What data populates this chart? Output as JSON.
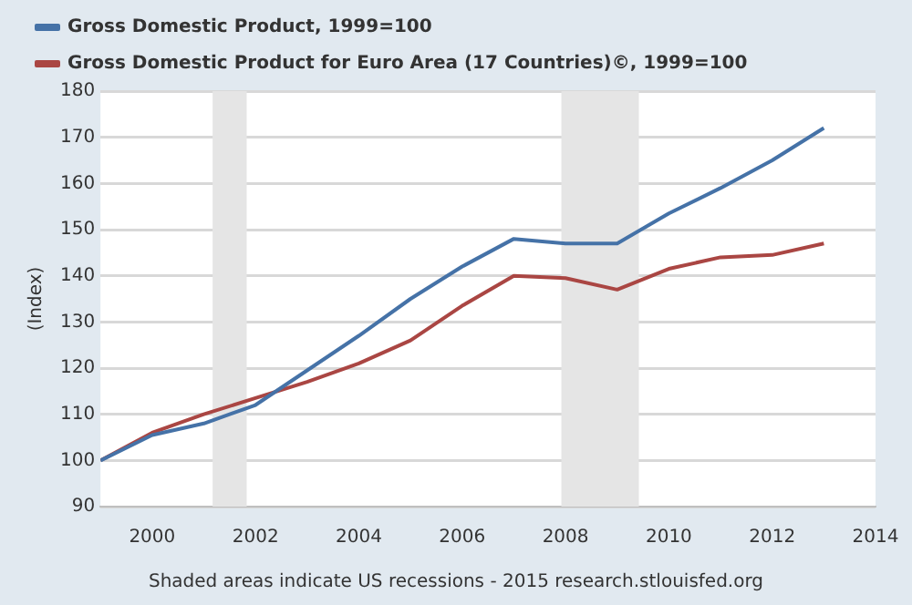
{
  "chart_data": {
    "type": "line",
    "ylabel": "(Index)",
    "x": [
      1999,
      2000,
      2001,
      2002,
      2003,
      2004,
      2005,
      2006,
      2007,
      2008,
      2009,
      2010,
      2011,
      2012,
      2013
    ],
    "series": [
      {
        "name": "Gross Domestic Product, 1999=100",
        "color": "#4572a7",
        "values": [
          100,
          105.5,
          108,
          112,
          119.5,
          127,
          135,
          142,
          148,
          147,
          147,
          153.5,
          159,
          165,
          172
        ]
      },
      {
        "name": "Gross Domestic Product for Euro Area (17 Countries)©, 1999=100",
        "color": "#aa4643",
        "values": [
          100,
          106,
          110,
          113.5,
          117,
          121,
          126,
          133.5,
          140,
          139.5,
          137,
          141.5,
          144,
          144.5,
          147
        ]
      }
    ],
    "xlim": [
      1999,
      2014
    ],
    "xticks": [
      2000,
      2002,
      2004,
      2006,
      2008,
      2010,
      2012,
      2014
    ],
    "ylim": [
      90,
      180
    ],
    "yticks": [
      90,
      100,
      110,
      120,
      130,
      140,
      150,
      160,
      170,
      180
    ],
    "bands": [
      {
        "axis": "x",
        "from": 2001.17,
        "to": 2001.83,
        "color": "#e5e5e5"
      },
      {
        "axis": "x",
        "from": 2007.92,
        "to": 2009.42,
        "color": "#e5e5e5"
      }
    ],
    "grid": "y",
    "legend": "top left",
    "marker": "none",
    "line_style": "solid",
    "annotations": [
      "Shaded areas indicate US recessions - 2015 research.stlouisfed.org"
    ]
  }
}
